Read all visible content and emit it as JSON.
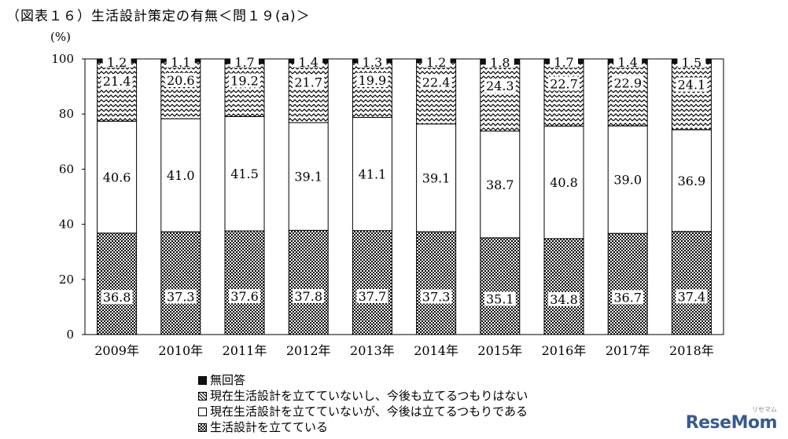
{
  "title": "（図表１６）生活設計策定の有無＜問１９(a)＞",
  "chart_data": {
    "type": "bar",
    "stacked": true,
    "ylabel": "(%)",
    "ylim": [
      0,
      100
    ],
    "yticks": [
      0,
      20,
      40,
      60,
      80,
      100
    ],
    "categories": [
      "2009年",
      "2010年",
      "2011年",
      "2012年",
      "2013年",
      "2014年",
      "2015年",
      "2016年",
      "2017年",
      "2018年"
    ],
    "series": [
      {
        "name": "生活設計を立てている",
        "pattern": "dots",
        "values": [
          36.8,
          37.3,
          37.6,
          37.8,
          37.7,
          37.3,
          35.1,
          34.8,
          36.7,
          37.4
        ]
      },
      {
        "name": "現在生活設計を立てていないが、今後は立てるつもりである",
        "pattern": "blank",
        "values": [
          40.6,
          41.0,
          41.5,
          39.1,
          41.1,
          39.1,
          38.7,
          40.8,
          39.0,
          36.9
        ]
      },
      {
        "name": "現在生活設計を立てていないし、今後も立てるつもりはない",
        "pattern": "waves",
        "values": [
          21.4,
          20.6,
          19.2,
          21.7,
          19.9,
          22.4,
          24.3,
          22.7,
          22.9,
          24.1
        ]
      },
      {
        "name": "無回答",
        "pattern": "solid",
        "values": [
          1.2,
          1.1,
          1.7,
          1.4,
          1.3,
          1.2,
          1.8,
          1.7,
          1.4,
          1.5
        ]
      }
    ],
    "legend_order": [
      "無回答",
      "現在生活設計を立てていないし、今後も立てるつもりはない",
      "現在生活設計を立てていないが、今後は立てるつもりである",
      "生活設計を立てている"
    ]
  },
  "legend": {
    "items": [
      {
        "label": "無回答",
        "pattern": "solid"
      },
      {
        "label": "現在生活設計を立てていないし、今後も立てるつもりはない",
        "pattern": "waves"
      },
      {
        "label": "現在生活設計を立てていないが、今後は立てるつもりである",
        "pattern": "blank"
      },
      {
        "label": "生活設計を立てている",
        "pattern": "dots"
      }
    ]
  },
  "watermark": {
    "text": "ReseMom",
    "sub": "リセマム"
  },
  "colors": {
    "axis": "#000000",
    "bar_border": "#000000",
    "dot_fill": "#000000",
    "solid_fill": "#111111"
  }
}
